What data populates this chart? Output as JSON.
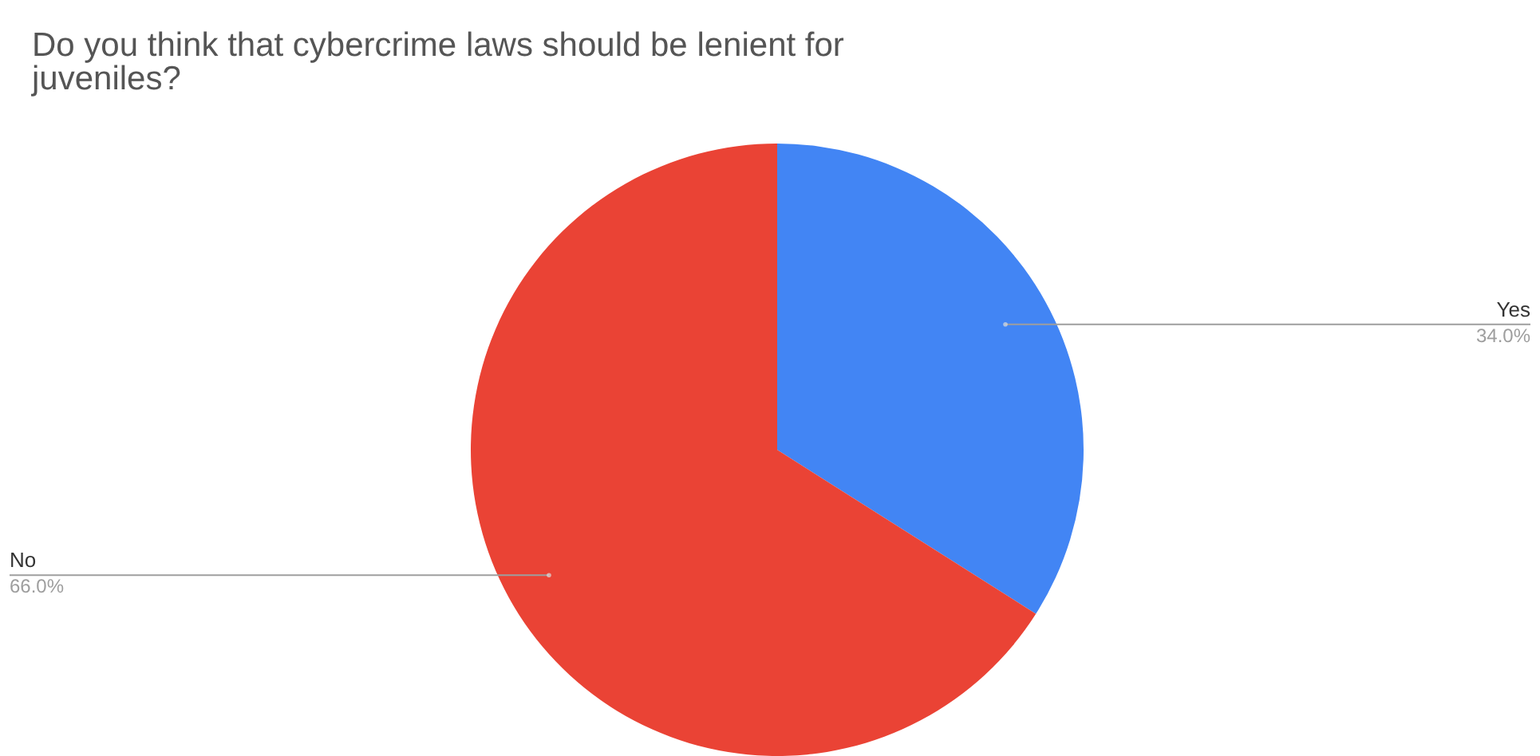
{
  "chart_data": {
    "type": "pie",
    "title": "Do you think that cybercrime laws should be lenient for juveniles?",
    "categories": [
      "Yes",
      "No"
    ],
    "values": [
      34.0,
      66.0
    ],
    "colors": [
      "#4285f4",
      "#ea4335"
    ],
    "value_labels": [
      "34.0%",
      "66.0%"
    ]
  }
}
